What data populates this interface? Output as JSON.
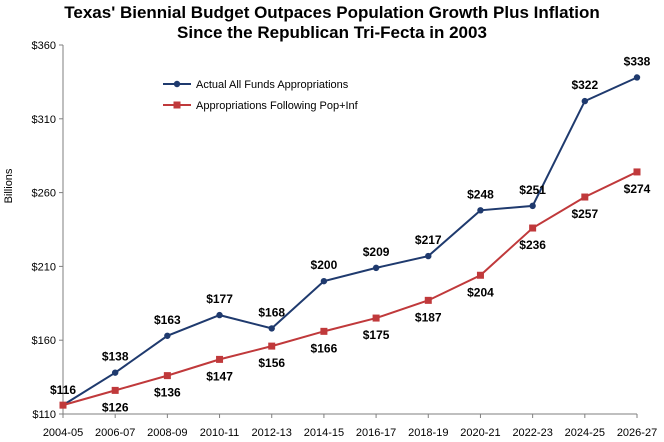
{
  "chart_data": {
    "type": "line",
    "title": "Texas' Biennial Budget Outpaces Population Growth Plus Inflation",
    "subtitle": "Since the Republican Tri-Fecta in 2003",
    "xlabel": "",
    "ylabel": "Billions",
    "ylim": [
      110,
      360
    ],
    "yticks": [
      "$110",
      "$160",
      "$210",
      "$260",
      "$310",
      "$360"
    ],
    "ytick_values": [
      110,
      160,
      210,
      260,
      310,
      360
    ],
    "grid": false,
    "legend_position": "top-left",
    "categories": [
      "2004-05",
      "2006-07",
      "2008-09",
      "2010-11",
      "2012-13",
      "2014-15",
      "2016-17",
      "2018-19",
      "2020-21",
      "2022-23",
      "2024-25",
      "2026-27"
    ],
    "series": [
      {
        "name": "Actual All Funds Appropriations",
        "color": "#1f3a6e",
        "marker": "circle",
        "values": [
          116,
          138,
          163,
          177,
          168,
          200,
          209,
          217,
          248,
          251,
          322,
          338
        ],
        "labels": [
          "$116",
          "$138",
          "$163",
          "$177",
          "$168",
          "$200",
          "$209",
          "$217",
          "$248",
          "$251",
          "$322",
          "$338"
        ]
      },
      {
        "name": "Appropriations Following Pop+Inf",
        "color": "#c0393b",
        "marker": "square",
        "values": [
          116,
          126,
          136,
          147,
          156,
          166,
          175,
          187,
          204,
          236,
          257,
          274
        ],
        "labels": [
          "",
          "$126",
          "$136",
          "$147",
          "$156",
          "$166",
          "$175",
          "$187",
          "$204",
          "$236",
          "$257",
          "$274"
        ]
      }
    ]
  }
}
